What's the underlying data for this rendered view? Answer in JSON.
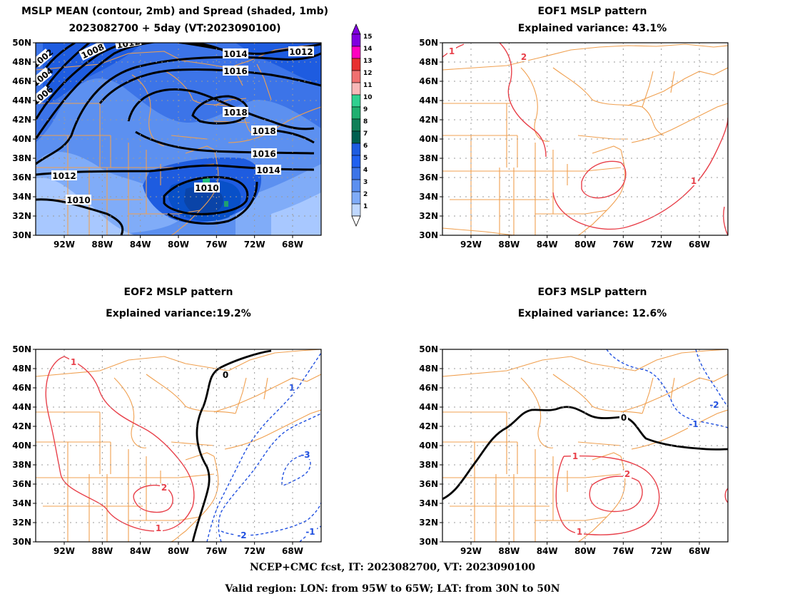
{
  "panels": {
    "mean": {
      "title_line1": "MSLP MEAN (contour, 2mb) and Spread (shaded, 1mb)",
      "title_line2": "2023082700 + 5day (VT:2023090100)",
      "contour_labels": [
        "1002",
        "1004",
        "1006",
        "1008",
        "1010",
        "1012",
        "1014",
        "1016",
        "1018"
      ],
      "colorbar_labels": [
        "15",
        "14",
        "13",
        "12",
        "11",
        "10",
        "9",
        "8",
        "7",
        "6",
        "5",
        "4",
        "3",
        "2",
        "1"
      ]
    },
    "eof1": {
      "title_line1": "EOF1 MSLP pattern",
      "title_line2": "Explained variance: 43.1%",
      "contour_labels": [
        "1",
        "2"
      ]
    },
    "eof2": {
      "title_line1": "EOF2 MSLP pattern",
      "title_line2": "Explained variance:19.2%",
      "contour_labels": [
        "0",
        "1",
        "2",
        "-1",
        "-2",
        "-3"
      ]
    },
    "eof3": {
      "title_line1": "EOF3 MSLP pattern",
      "title_line2": "Explained variance: 12.6%",
      "contour_labels": [
        "0",
        "1",
        "2",
        "-1",
        "-2"
      ]
    }
  },
  "axes": {
    "lat_ticks": [
      "50N",
      "48N",
      "46N",
      "44N",
      "42N",
      "40N",
      "38N",
      "36N",
      "34N",
      "32N",
      "30N"
    ],
    "lon_ticks": [
      "92W",
      "88W",
      "84W",
      "80W",
      "76W",
      "72W",
      "68W"
    ]
  },
  "colors": {
    "coastline": "#f0a050",
    "positive": "#e8404a",
    "negative": "#2050e0",
    "zero": "#000000",
    "spread_1": "#a8c8ff",
    "spread_2": "#80acf8",
    "spread_3": "#5c90f0",
    "spread_4": "#3c74e8",
    "spread_5": "#1e5ce0",
    "spread_6": "#0850c8"
  },
  "footer": {
    "line1": "NCEP+CMC fcst, IT: 2023082700, VT: 2023090100",
    "line2": "Valid region: LON: from 95W to 65W; LAT: from 30N to 50N"
  }
}
